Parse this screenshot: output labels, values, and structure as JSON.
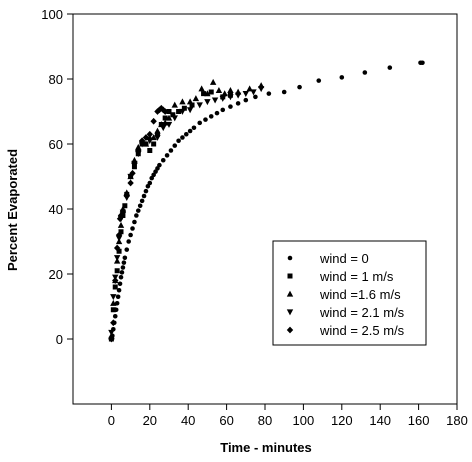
{
  "chart_data": {
    "type": "scatter",
    "title": "",
    "xlabel": "Time - minutes",
    "ylabel": "Percent Evaporated",
    "xlim": [
      -20,
      180
    ],
    "ylim": [
      -20,
      100
    ],
    "xticks": [
      0,
      20,
      40,
      60,
      80,
      100,
      120,
      140,
      160,
      180
    ],
    "yticks": [
      0,
      20,
      40,
      60,
      80,
      100
    ],
    "grid": false,
    "legend_position": "lower-right",
    "series": [
      {
        "name": "wind = 0",
        "marker": "circle",
        "points": [
          [
            0.5,
            1
          ],
          [
            1,
            3
          ],
          [
            1.5,
            5
          ],
          [
            2,
            7
          ],
          [
            2.5,
            9
          ],
          [
            3,
            11
          ],
          [
            3.5,
            13
          ],
          [
            4,
            15
          ],
          [
            4.5,
            17
          ],
          [
            5,
            19
          ],
          [
            5.5,
            20.5
          ],
          [
            6,
            22
          ],
          [
            6.5,
            23.5
          ],
          [
            7,
            25
          ],
          [
            8,
            27.5
          ],
          [
            9,
            30
          ],
          [
            10,
            32
          ],
          [
            11,
            34
          ],
          [
            12,
            36
          ],
          [
            13,
            38
          ],
          [
            14,
            39.5
          ],
          [
            15,
            41
          ],
          [
            16,
            42.5
          ],
          [
            17,
            44
          ],
          [
            18,
            45.5
          ],
          [
            19,
            47
          ],
          [
            20,
            48
          ],
          [
            21,
            49.5
          ],
          [
            22,
            50.5
          ],
          [
            23,
            51.5
          ],
          [
            24,
            52.5
          ],
          [
            25,
            53.5
          ],
          [
            27,
            55
          ],
          [
            29,
            56.5
          ],
          [
            31,
            58
          ],
          [
            33,
            59.5
          ],
          [
            35,
            61
          ],
          [
            37,
            62
          ],
          [
            39,
            63
          ],
          [
            41,
            64
          ],
          [
            43,
            65
          ],
          [
            46,
            66.5
          ],
          [
            49,
            67.5
          ],
          [
            52,
            68.5
          ],
          [
            55,
            69.5
          ],
          [
            58,
            70.5
          ],
          [
            62,
            71.5
          ],
          [
            66,
            72.5
          ],
          [
            70,
            73.5
          ],
          [
            75,
            74.5
          ],
          [
            82,
            75.5
          ],
          [
            90,
            76
          ],
          [
            98,
            77.5
          ],
          [
            108,
            79.5
          ],
          [
            120,
            80.5
          ],
          [
            132,
            82
          ],
          [
            145,
            83.5
          ],
          [
            161,
            85
          ],
          [
            162,
            85
          ]
        ]
      },
      {
        "name": "wind = 1 m/s",
        "marker": "square",
        "points": [
          [
            0,
            0
          ],
          [
            1,
            9
          ],
          [
            2,
            16
          ],
          [
            3,
            21
          ],
          [
            4,
            27
          ],
          [
            5,
            33
          ],
          [
            6,
            38
          ],
          [
            7,
            41
          ],
          [
            8,
            44.5
          ],
          [
            10,
            50
          ],
          [
            12,
            53
          ],
          [
            14,
            57
          ],
          [
            16,
            60
          ],
          [
            18,
            60
          ],
          [
            20,
            58
          ],
          [
            22,
            60
          ],
          [
            24,
            63
          ],
          [
            26,
            66
          ],
          [
            28,
            68
          ],
          [
            30,
            70
          ],
          [
            32,
            69
          ],
          [
            35,
            70
          ],
          [
            38,
            71
          ],
          [
            42,
            72
          ],
          [
            48,
            75.5
          ],
          [
            52,
            76
          ],
          [
            58,
            74.5
          ],
          [
            62,
            75
          ]
        ]
      },
      {
        "name": "wind =1.6 m/s",
        "marker": "triangle-up",
        "points": [
          [
            0,
            1
          ],
          [
            1,
            11
          ],
          [
            2,
            18
          ],
          [
            3,
            24
          ],
          [
            4,
            30
          ],
          [
            5,
            35
          ],
          [
            6,
            40
          ],
          [
            8,
            45
          ],
          [
            10,
            50
          ],
          [
            12,
            55
          ],
          [
            14,
            59
          ],
          [
            16,
            61
          ],
          [
            18,
            60
          ],
          [
            20,
            62
          ],
          [
            22,
            62
          ],
          [
            24,
            64
          ],
          [
            26,
            66
          ],
          [
            28,
            66.5
          ],
          [
            30,
            68
          ],
          [
            33,
            72
          ],
          [
            37,
            73
          ],
          [
            41,
            73
          ],
          [
            44,
            74
          ],
          [
            47,
            77
          ],
          [
            50,
            75.5
          ],
          [
            53,
            79
          ],
          [
            56,
            76.5
          ],
          [
            59,
            75.5
          ],
          [
            62,
            76.5
          ],
          [
            66,
            76
          ],
          [
            72,
            77
          ],
          [
            78,
            78
          ]
        ]
      },
      {
        "name": "wind = 2.1 m/s",
        "marker": "triangle-down",
        "points": [
          [
            0,
            2
          ],
          [
            1,
            13
          ],
          [
            2,
            19
          ],
          [
            3,
            25
          ],
          [
            4,
            31
          ],
          [
            5,
            37
          ],
          [
            6,
            39
          ],
          [
            8,
            43.5
          ],
          [
            10,
            50
          ],
          [
            12,
            54
          ],
          [
            14,
            57
          ],
          [
            16,
            60
          ],
          [
            20,
            61
          ],
          [
            24,
            62
          ],
          [
            27,
            65
          ],
          [
            30,
            66
          ],
          [
            33,
            68
          ],
          [
            37,
            70
          ],
          [
            41,
            70.5
          ],
          [
            46,
            72
          ],
          [
            50,
            73
          ],
          [
            54,
            73.5
          ],
          [
            58,
            74
          ],
          [
            62,
            74.5
          ],
          [
            66,
            75
          ],
          [
            70,
            75.5
          ],
          [
            74,
            76
          ],
          [
            78,
            77
          ]
        ]
      },
      {
        "name": "wind = 2.5 m/s",
        "marker": "diamond",
        "points": [
          [
            0,
            0
          ],
          [
            1,
            5
          ],
          [
            2,
            18
          ],
          [
            3,
            28
          ],
          [
            4,
            32
          ],
          [
            4.5,
            37
          ],
          [
            5,
            38
          ],
          [
            6,
            39
          ],
          [
            8,
            44
          ],
          [
            10,
            48
          ],
          [
            11,
            51
          ],
          [
            12,
            54
          ],
          [
            14,
            58
          ],
          [
            16,
            61
          ],
          [
            18,
            62
          ],
          [
            20,
            63
          ],
          [
            22,
            67
          ],
          [
            24,
            70
          ],
          [
            25,
            70.5
          ],
          [
            26,
            71
          ],
          [
            27,
            70.5
          ],
          [
            28,
            70
          ]
        ]
      }
    ]
  }
}
